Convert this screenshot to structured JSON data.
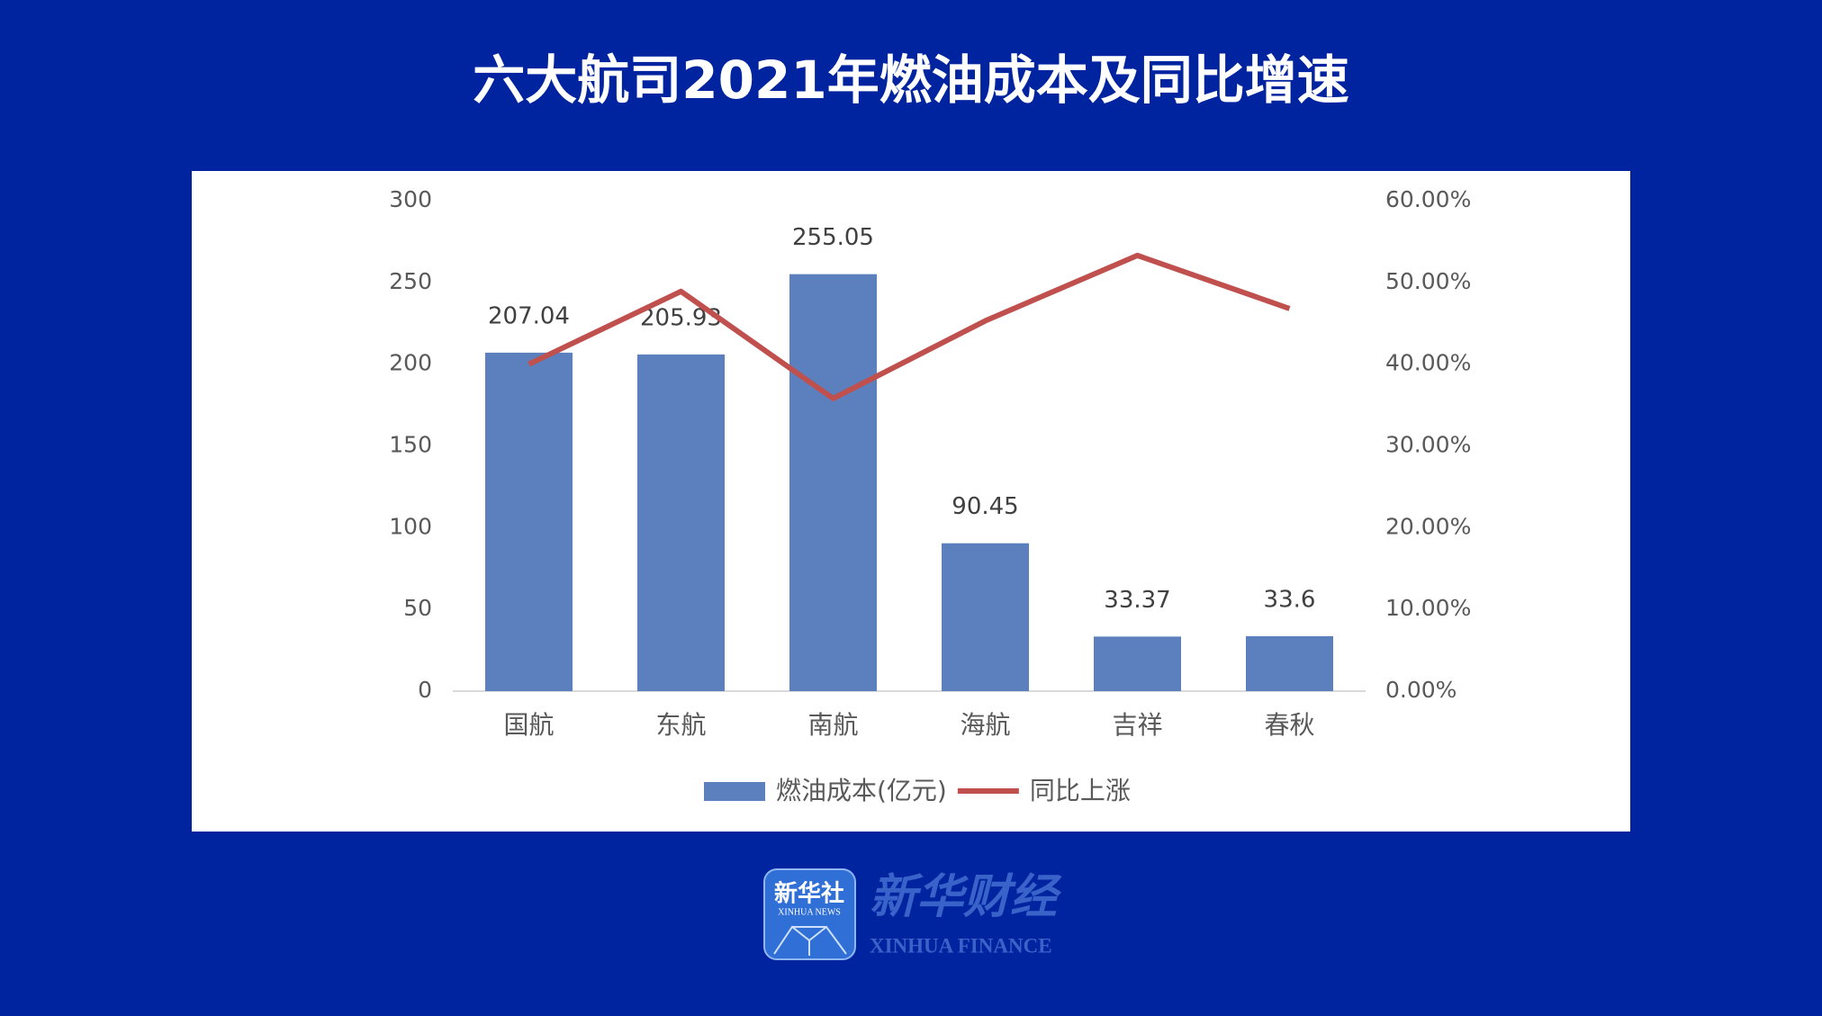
{
  "chart_data": {
    "type": "bar",
    "title": "六大航司2021年燃油成本及同比增速",
    "categories": [
      "国航",
      "东航",
      "南航",
      "海航",
      "吉祥",
      "春秋"
    ],
    "series": [
      {
        "name": "燃油成本(亿元)",
        "type": "bar",
        "color": "#5b80bd",
        "values": [
          207.04,
          205.93,
          255.05,
          90.45,
          33.37,
          33.6
        ]
      },
      {
        "name": "同比上涨",
        "type": "line",
        "axis": "y2",
        "color": "#c0504d",
        "values": [
          40.0,
          48.9,
          35.8,
          45.3,
          53.3,
          46.8
        ]
      }
    ],
    "ylim": [
      0,
      300
    ],
    "yticks": [
      0,
      50,
      100,
      150,
      200,
      250,
      300
    ],
    "y2lim": [
      0,
      60
    ],
    "y2ticks": [
      {
        "value": 0,
        "label": "0.00%"
      },
      {
        "value": 10,
        "label": "10.00%"
      },
      {
        "value": 20,
        "label": "20.00%"
      },
      {
        "value": 30,
        "label": "30.00%"
      },
      {
        "value": 40,
        "label": "40.00%"
      },
      {
        "value": 50,
        "label": "50.00%"
      },
      {
        "value": 60,
        "label": "60.00%"
      }
    ],
    "grid": false,
    "legend": "bottom"
  },
  "logo": {
    "icon_text": "新华社",
    "icon_subtext": "XINHUA NEWS",
    "brand": "新华财经",
    "brand_subtext": "XINHUA FINANCE"
  }
}
